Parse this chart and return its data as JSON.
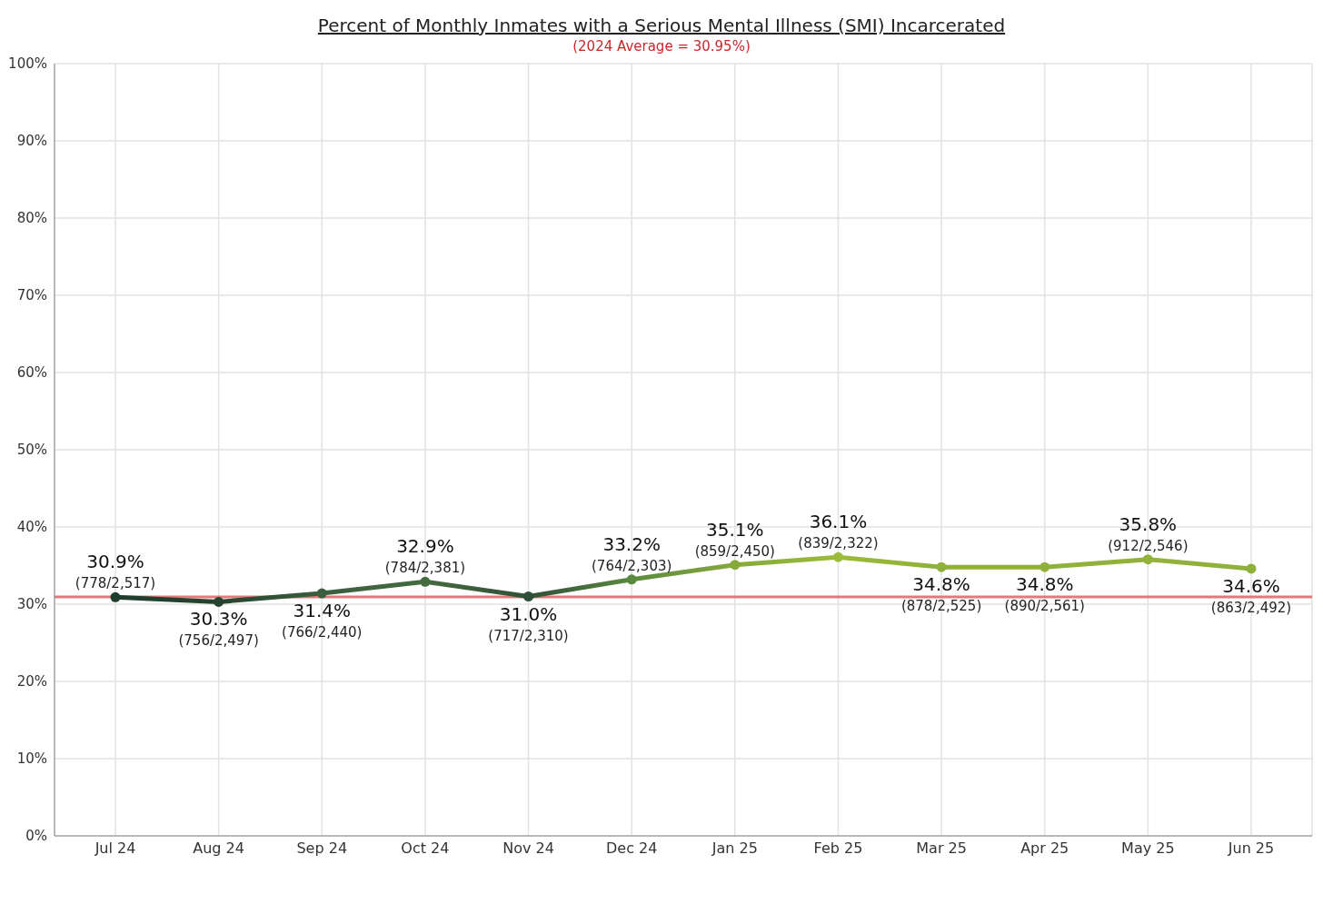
{
  "chart_data": {
    "type": "line",
    "title": "Percent of Monthly Inmates with a Serious Mental Illness (SMI) Incarcerated",
    "subtitle": "(2024 Average = 30.95%)",
    "categories": [
      "Jul 24",
      "Aug 24",
      "Sep 24",
      "Oct 24",
      "Nov 24",
      "Dec 24",
      "Jan 25",
      "Feb 25",
      "Mar 25",
      "Apr 25",
      "May 25",
      "Jun 25"
    ],
    "series": [
      {
        "colors": [
          "#1f3d2e",
          "#27432f",
          "#3a5e3f",
          "#456b40",
          "#2f5038",
          "#5a8a3f",
          "#86aa3a",
          "#9cbb3a",
          "#8fb03a",
          "#8fb03a",
          "#92b23a",
          "#8fb03a"
        ],
        "values": [
          30.9,
          30.3,
          31.4,
          32.9,
          31.0,
          33.2,
          35.1,
          36.1,
          34.8,
          34.8,
          35.8,
          34.6
        ],
        "value_labels": [
          "30.9%",
          "30.3%",
          "31.4%",
          "32.9%",
          "31.0%",
          "33.2%",
          "35.1%",
          "36.1%",
          "34.8%",
          "34.8%",
          "35.8%",
          "34.6%"
        ]
      }
    ],
    "annotations": [
      {
        "text": "(778/2,517)",
        "x": "Jul 24",
        "y": 30.9
      },
      {
        "text": "(756/2,497)",
        "x": "Aug 24",
        "y": 30.3
      },
      {
        "text": "(766/2,440)",
        "x": "Sep 24",
        "y": 31.4
      },
      {
        "text": "(784/2,381)",
        "x": "Oct 24",
        "y": 32.9
      },
      {
        "text": "(717/2,310)",
        "x": "Nov 24",
        "y": 31.0
      },
      {
        "text": "(764/2,303)",
        "x": "Dec 24",
        "y": 33.2
      },
      {
        "text": "(859/2,450)",
        "x": "Jan 25",
        "y": 35.1
      },
      {
        "text": "(839/2,322)",
        "x": "Feb 25",
        "y": 36.1
      },
      {
        "text": "(878/2,525)",
        "x": "Mar 25",
        "y": 34.8
      },
      {
        "text": "(890/2,561)",
        "x": "Apr 25",
        "y": 34.8
      },
      {
        "text": "(912/2,546)",
        "x": "May 25",
        "y": 35.8
      },
      {
        "text": "(863/2,492)",
        "x": "Jun 25",
        "y": 34.6
      }
    ],
    "ylim": [
      0,
      100
    ],
    "yticks": [
      {
        "value": 0,
        "label": "0%"
      },
      {
        "value": 10,
        "label": "10%"
      },
      {
        "value": 20,
        "label": "20%"
      },
      {
        "value": 30,
        "label": "30%"
      },
      {
        "value": 40,
        "label": "40%"
      },
      {
        "value": 50,
        "label": "50%"
      },
      {
        "value": 60,
        "label": "60%"
      },
      {
        "value": 70,
        "label": "70%"
      },
      {
        "value": 80,
        "label": "80%"
      },
      {
        "value": 90,
        "label": "90%"
      },
      {
        "value": 100,
        "label": "100%"
      }
    ],
    "ref_lines": [
      {
        "axis": "y",
        "value": 30.95,
        "color": "#e07b7b"
      }
    ],
    "grid": true,
    "marker": "circle",
    "line_style": "solid"
  }
}
